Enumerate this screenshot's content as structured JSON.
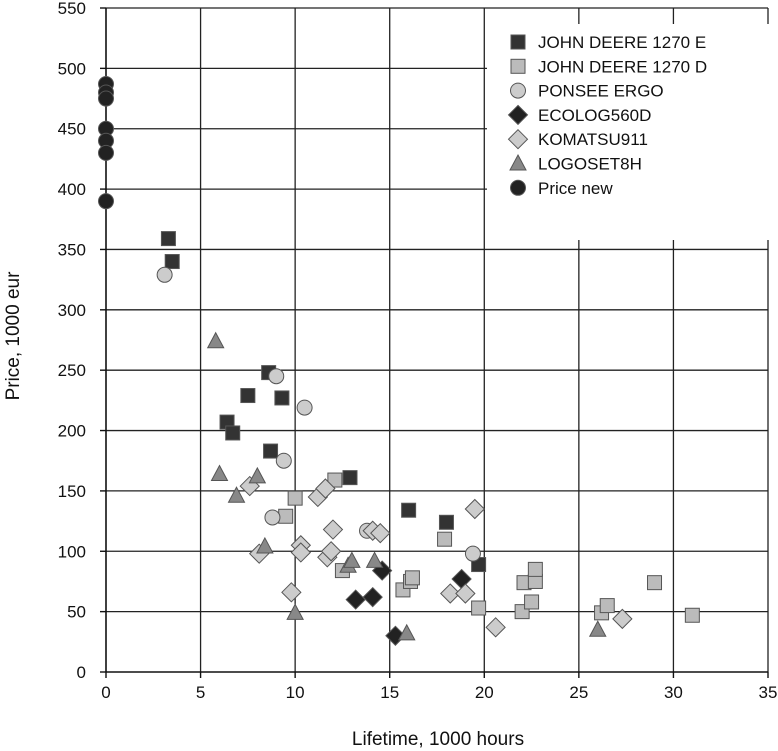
{
  "chart_data": {
    "type": "scatter",
    "xlabel": "Lifetime, 1000 hours",
    "ylabel": "Price, 1000 eur",
    "xlim": [
      0,
      35
    ],
    "ylim": [
      0,
      550
    ],
    "x_ticks": [
      0,
      5,
      10,
      15,
      20,
      25,
      30,
      35
    ],
    "y_ticks": [
      0,
      50,
      100,
      150,
      200,
      250,
      300,
      350,
      400,
      450,
      500,
      550
    ],
    "grid": true,
    "legend_position": "top-right",
    "series": [
      {
        "name": "JOHN DEERE 1270 E",
        "marker": "square",
        "color": "#333333",
        "points": [
          [
            3.3,
            359
          ],
          [
            3.5,
            340
          ],
          [
            6.4,
            207
          ],
          [
            6.7,
            198
          ],
          [
            7.5,
            229
          ],
          [
            8.6,
            248
          ],
          [
            8.7,
            183
          ],
          [
            9.3,
            227
          ],
          [
            12.9,
            161
          ],
          [
            16.0,
            134
          ],
          [
            18.0,
            124
          ],
          [
            19.7,
            89
          ]
        ]
      },
      {
        "name": "JOHN DEERE 1270 D",
        "marker": "square",
        "color": "#bbbbbb",
        "points": [
          [
            9.5,
            129
          ],
          [
            10.0,
            144
          ],
          [
            12.1,
            159
          ],
          [
            12.5,
            84
          ],
          [
            15.7,
            68
          ],
          [
            16.1,
            75
          ],
          [
            16.2,
            78
          ],
          [
            17.9,
            110
          ],
          [
            19.7,
            53
          ],
          [
            22.0,
            50
          ],
          [
            22.1,
            74
          ],
          [
            22.5,
            58
          ],
          [
            22.7,
            75
          ],
          [
            22.7,
            85
          ],
          [
            26.2,
            49
          ],
          [
            26.5,
            55
          ],
          [
            29.0,
            74
          ],
          [
            31.0,
            47
          ]
        ]
      },
      {
        "name": "PONSEE ERGO",
        "marker": "circle",
        "color": "#cccccc",
        "points": [
          [
            3.1,
            329
          ],
          [
            8.8,
            128
          ],
          [
            9.0,
            245
          ],
          [
            9.4,
            175
          ],
          [
            10.5,
            219
          ],
          [
            13.8,
            117
          ],
          [
            19.4,
            98
          ]
        ]
      },
      {
        "name": "ECOLOG560D",
        "marker": "diamond",
        "color": "#222222",
        "points": [
          [
            13.2,
            60
          ],
          [
            14.1,
            62
          ],
          [
            14.6,
            84
          ],
          [
            15.3,
            30
          ],
          [
            18.8,
            77
          ]
        ]
      },
      {
        "name": "KOMATSU911",
        "marker": "diamond",
        "color": "#cccccc",
        "points": [
          [
            7.6,
            154
          ],
          [
            8.1,
            98
          ],
          [
            9.8,
            66
          ],
          [
            10.3,
            105
          ],
          [
            10.3,
            99
          ],
          [
            11.2,
            145
          ],
          [
            11.6,
            152
          ],
          [
            11.7,
            95
          ],
          [
            11.9,
            100
          ],
          [
            12.0,
            118
          ],
          [
            14.1,
            117
          ],
          [
            14.5,
            115
          ],
          [
            18.2,
            65
          ],
          [
            19.0,
            65
          ],
          [
            19.5,
            135
          ],
          [
            20.6,
            37
          ],
          [
            27.3,
            44
          ]
        ]
      },
      {
        "name": "LOGOSET8H",
        "marker": "triangle",
        "color": "#888888",
        "points": [
          [
            5.8,
            274
          ],
          [
            6.0,
            164
          ],
          [
            6.9,
            146
          ],
          [
            8.0,
            162
          ],
          [
            8.4,
            104
          ],
          [
            10.0,
            49
          ],
          [
            12.8,
            88
          ],
          [
            13.0,
            92
          ],
          [
            14.2,
            92
          ],
          [
            15.9,
            32
          ],
          [
            26.0,
            35
          ]
        ]
      },
      {
        "name": "Price new",
        "marker": "circle",
        "color": "#222222",
        "points": [
          [
            0,
            487
          ],
          [
            0,
            480
          ],
          [
            0,
            475
          ],
          [
            0,
            450
          ],
          [
            0,
            440
          ],
          [
            0,
            430
          ],
          [
            0,
            390
          ]
        ]
      }
    ]
  }
}
